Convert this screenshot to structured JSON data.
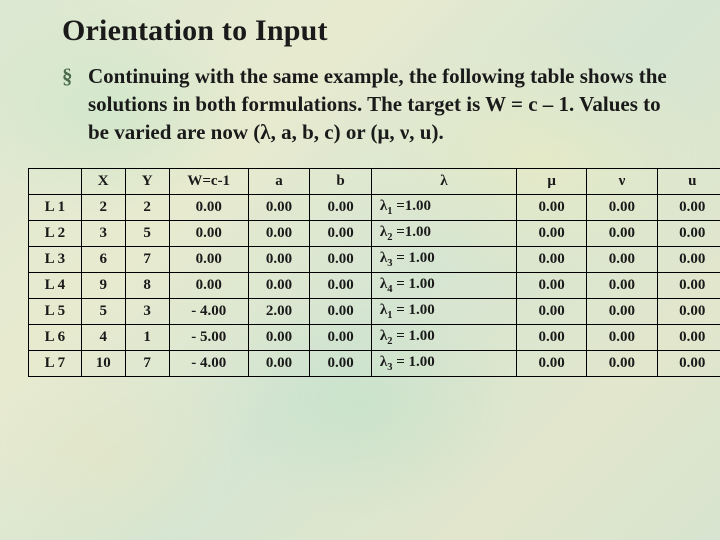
{
  "title": "Orientation to Input",
  "bullet_glyph": "§",
  "body_html": "Continuing with the same example, the following table shows the solutions in both formulations. The target is  W = c – 1. Values to be varied are now (λ, a, b, c) or (μ, ν, u).",
  "table": {
    "headers": [
      "",
      "X",
      "Y",
      "W=c-1",
      "a",
      "b",
      "λ",
      "μ",
      "ν",
      "u"
    ],
    "rows": [
      {
        "label": "L 1",
        "X": "2",
        "Y": "2",
        "W": "0.00",
        "a": "0.00",
        "b": "0.00",
        "lam_html": "λ<span class=\"sub\">1</span> =1.00",
        "mu": "0.00",
        "nu": "0.00",
        "u": "0.00"
      },
      {
        "label": "L 2",
        "X": "3",
        "Y": "5",
        "W": "0.00",
        "a": "0.00",
        "b": "0.00",
        "lam_html": "λ<span class=\"sub\">2</span> =1.00",
        "mu": "0.00",
        "nu": "0.00",
        "u": "0.00"
      },
      {
        "label": "L 3",
        "X": "6",
        "Y": "7",
        "W": "0.00",
        "a": "0.00",
        "b": "0.00",
        "lam_html": "λ<span class=\"sub\">3</span> = 1.00",
        "mu": "0.00",
        "nu": "0.00",
        "u": "0.00"
      },
      {
        "label": "L 4",
        "X": "9",
        "Y": "8",
        "W": "0.00",
        "a": "0.00",
        "b": "0.00",
        "lam_html": "λ<span class=\"sub\">4</span> = 1.00",
        "mu": "0.00",
        "nu": "0.00",
        "u": "0.00"
      },
      {
        "label": "L 5",
        "X": "5",
        "Y": "3",
        "W": "- 4.00",
        "a": "2.00",
        "b": "0.00",
        "lam_html": "λ<span class=\"sub\">1</span> = 1.00",
        "mu": "0.00",
        "nu": "0.00",
        "u": "0.00"
      },
      {
        "label": "L 6",
        "X": "4",
        "Y": "1",
        "W": "- 5.00",
        "a": "0.00",
        "b": "0.00",
        "lam_html": "λ<span class=\"sub\">2</span> = 1.00",
        "mu": "0.00",
        "nu": "0.00",
        "u": "0.00"
      },
      {
        "label": "L 7",
        "X": "10",
        "Y": "7",
        "W": "- 4.00",
        "a": "0.00",
        "b": "0.00",
        "lam_html": "λ<span class=\"sub\">3</span> = 1.00",
        "mu": "0.00",
        "nu": "0.00",
        "u": "0.00"
      }
    ]
  },
  "colors": {
    "text": "#1a1a1a",
    "bullet": "#4a6a4a",
    "border": "#000000"
  }
}
